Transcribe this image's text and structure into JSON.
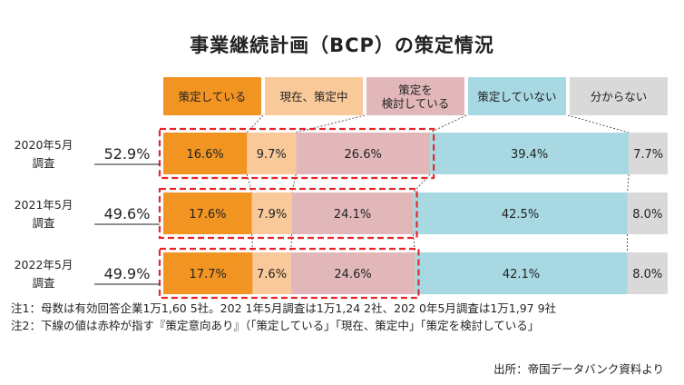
{
  "title": "事業継続計画（BCP）の策定情況",
  "chart_data": {
    "type": "bar",
    "orientation": "horizontal",
    "stacked": true,
    "percent": true,
    "categories": [
      "2020年5月調査",
      "2021年5月調査",
      "2022年5月調査"
    ],
    "row_labels": [
      {
        "year": "2020年5月",
        "sub": "調査"
      },
      {
        "year": "2021年5月",
        "sub": "調査"
      },
      {
        "year": "2022年5月",
        "sub": "調査"
      }
    ],
    "series": [
      {
        "name": "策定している",
        "lines": [
          "策定している"
        ],
        "color": "#f29422",
        "values": [
          16.6,
          17.6,
          17.7
        ]
      },
      {
        "name": "現在、策定中",
        "lines": [
          "現在、策定中"
        ],
        "color": "#f9c99a",
        "values": [
          9.7,
          7.9,
          7.6
        ]
      },
      {
        "name": "策定を検討している",
        "lines": [
          "策定を",
          "検討している"
        ],
        "color": "#e2b7b9",
        "values": [
          26.6,
          24.1,
          24.6
        ]
      },
      {
        "name": "策定していない",
        "lines": [
          "策定していない"
        ],
        "color": "#a8d9e3",
        "values": [
          39.4,
          42.5,
          42.1
        ]
      },
      {
        "name": "分からない",
        "lines": [
          "分からない"
        ],
        "color": "#d9d9d9",
        "values": [
          7.7,
          8.0,
          8.0
        ]
      }
    ],
    "value_labels": [
      [
        "16.6%",
        "9.7%",
        "26.6%",
        "39.4%",
        "7.7%"
      ],
      [
        "17.6%",
        "7.9%",
        "24.1%",
        "42.5%",
        "8.0%"
      ],
      [
        "17.7%",
        "7.6%",
        "24.6%",
        "42.1%",
        "8.0%"
      ]
    ],
    "intent_totals": [
      "52.9%",
      "49.6%",
      "49.9%"
    ],
    "intent_values": [
      52.9,
      49.6,
      49.9
    ],
    "highlight_color": "#e8262a"
  },
  "notes": [
    "注1：母数は有効回答企業1万1,60 5社。202 1年5月調査は1万1,24 2社、202 0年5月調査は1万1,97 9社",
    "注2：下線の値は赤枠が指す『策定意向あり』（「策定している」「現在、策定中」「策定を検討している」"
  ],
  "source": "出所：帝国データバンク資料より"
}
